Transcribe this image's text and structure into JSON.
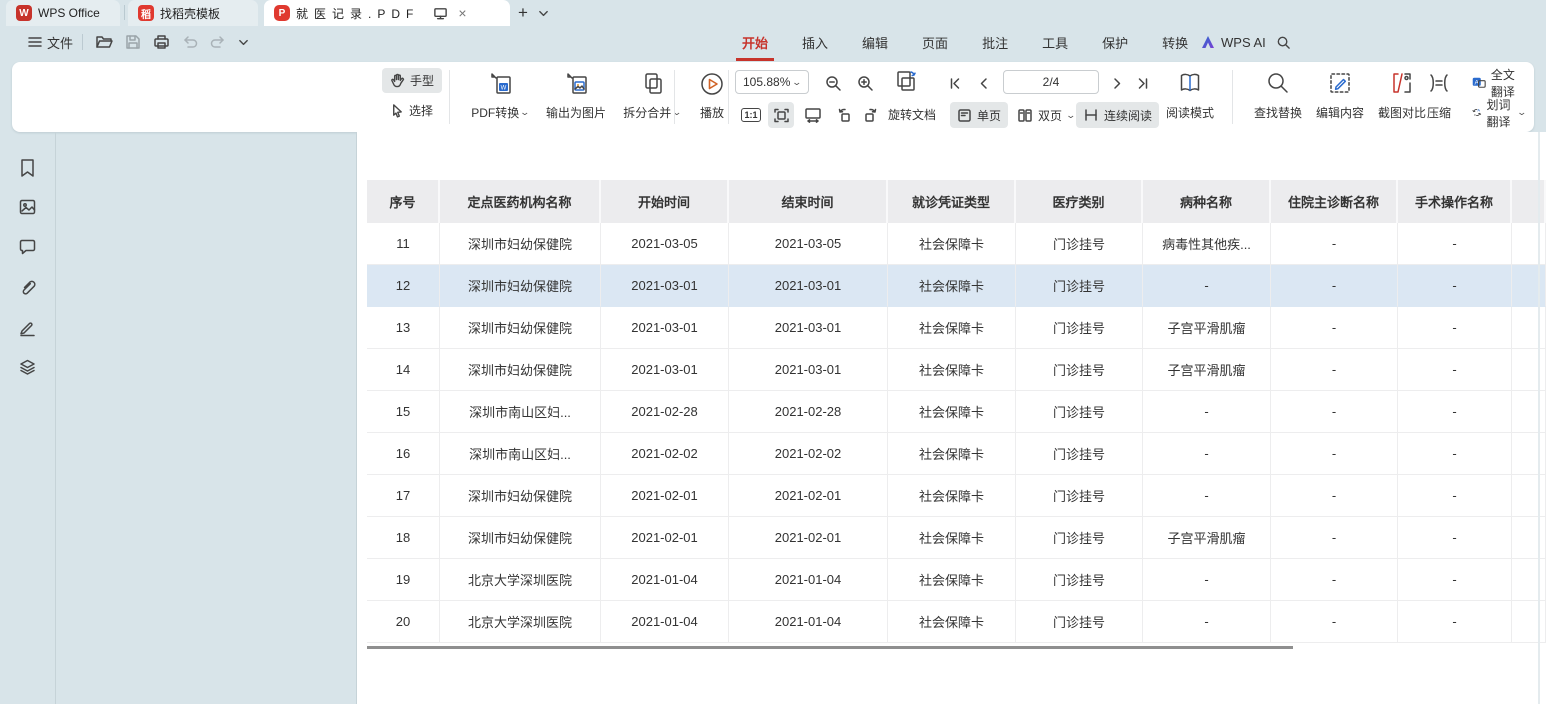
{
  "tab_bar": {
    "tabs": [
      {
        "label": "WPS Office"
      },
      {
        "label": "找稻壳模板"
      },
      {
        "label": "就医记录.PDF",
        "active": true
      }
    ],
    "pdf_badge": "P",
    "docer_badge": "稻",
    "wps_logo": "W",
    "close_glyph": "×",
    "new_tab_glyph": "+"
  },
  "menu_bar": {
    "file_label": "文件",
    "items": [
      "开始",
      "插入",
      "编辑",
      "页面",
      "批注",
      "工具",
      "保护",
      "转换"
    ],
    "active_item": "开始",
    "wps_ai_label": "WPS AI"
  },
  "toolbar": {
    "hand_label": "手型",
    "select_label": "选择",
    "pdf_convert_label": "PDF转换",
    "export_image_label": "输出为图片",
    "split_merge_label": "拆分合并",
    "play_label": "播放",
    "zoom_value": "105.88%",
    "page_indicator": "2/4",
    "one_to_one_label": "1:1",
    "rotate_doc_label": "旋转文档",
    "single_page_label": "单页",
    "double_page_label": "双页",
    "continuous_label": "连续阅读",
    "read_mode_label": "阅读模式",
    "find_replace_label": "查找替换",
    "edit_content_label": "编辑内容",
    "screenshot_compare_label": "截图对比",
    "compress_label": "压缩",
    "full_translate_label": "全文翻译",
    "word_translate_label": "划词翻译"
  },
  "table": {
    "headers": [
      "序号",
      "定点医药机构名称",
      "开始时间",
      "结束时间",
      "就诊凭证类型",
      "医疗类别",
      "病种名称",
      "住院主诊断名称",
      "手术操作名称"
    ],
    "rows": [
      [
        "11",
        "深圳市妇幼保健院",
        "2021-03-05",
        "2021-03-05",
        "社会保障卡",
        "门诊挂号",
        "病毒性其他疾...",
        "-",
        "-"
      ],
      [
        "12",
        "深圳市妇幼保健院",
        "2021-03-01",
        "2021-03-01",
        "社会保障卡",
        "门诊挂号",
        "-",
        "-",
        "-"
      ],
      [
        "13",
        "深圳市妇幼保健院",
        "2021-03-01",
        "2021-03-01",
        "社会保障卡",
        "门诊挂号",
        "子宫平滑肌瘤",
        "-",
        "-"
      ],
      [
        "14",
        "深圳市妇幼保健院",
        "2021-03-01",
        "2021-03-01",
        "社会保障卡",
        "门诊挂号",
        "子宫平滑肌瘤",
        "-",
        "-"
      ],
      [
        "15",
        "深圳市南山区妇...",
        "2021-02-28",
        "2021-02-28",
        "社会保障卡",
        "门诊挂号",
        "-",
        "-",
        "-"
      ],
      [
        "16",
        "深圳市南山区妇...",
        "2021-02-02",
        "2021-02-02",
        "社会保障卡",
        "门诊挂号",
        "-",
        "-",
        "-"
      ],
      [
        "17",
        "深圳市妇幼保健院",
        "2021-02-01",
        "2021-02-01",
        "社会保障卡",
        "门诊挂号",
        "-",
        "-",
        "-"
      ],
      [
        "18",
        "深圳市妇幼保健院",
        "2021-02-01",
        "2021-02-01",
        "社会保障卡",
        "门诊挂号",
        "子宫平滑肌瘤",
        "-",
        "-"
      ],
      [
        "19",
        "北京大学深圳医院",
        "2021-01-04",
        "2021-01-04",
        "社会保障卡",
        "门诊挂号",
        "-",
        "-",
        "-"
      ],
      [
        "20",
        "北京大学深圳医院",
        "2021-01-04",
        "2021-01-04",
        "社会保障卡",
        "门诊挂号",
        "-",
        "-",
        "-"
      ]
    ],
    "highlighted_row_index": 1
  },
  "colors": {
    "accent_red": "#c7332b",
    "accent_blue": "#2a6bce",
    "highlight_row": "#dbe7f3",
    "chrome_bg": "#d8e4e9",
    "header_bg": "#ececee"
  }
}
